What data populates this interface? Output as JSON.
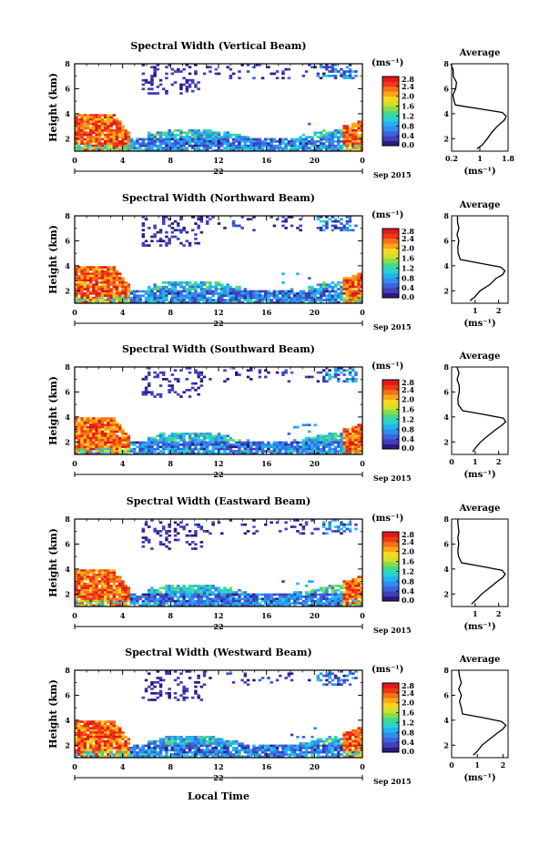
{
  "panels": [
    {
      "title": "Spectral Width (Vertical Beam)"
    },
    {
      "title": "Spectral Width (Northward Beam)"
    },
    {
      "title": "Spectral Width (Southward Beam)"
    },
    {
      "title": "Spectral Width (Eastward Beam)"
    },
    {
      "title": "Spectral Width (Westward Beam)"
    }
  ],
  "colorbar": {
    "unit_label": "(ms⁻¹)",
    "ticks": [
      "2.8",
      "2.4",
      "2.0",
      "1.6",
      "1.2",
      "0.8",
      "0.4",
      "0.0"
    ],
    "colors": [
      "#2b1b80",
      "#3f3fb8",
      "#3c64e0",
      "#2f8ef0",
      "#22b4f0",
      "#28d2d2",
      "#3ed890",
      "#8adc46",
      "#d2e028",
      "#f8d81c",
      "#f8a818",
      "#f87018",
      "#f03818",
      "#e01818"
    ]
  },
  "xaxis": {
    "ticks": [
      "0",
      "4",
      "8",
      "12",
      "16",
      "20",
      "0"
    ],
    "day_label": "22",
    "month_label": "Sep 2015",
    "label": "Local Time"
  },
  "yaxis": {
    "label": "Height (km)",
    "ticks": [
      "2",
      "4",
      "6",
      "8"
    ]
  },
  "average": {
    "title": "Average",
    "xlabel": "(ms⁻¹)",
    "yticks": [
      "2",
      "4",
      "6",
      "8"
    ]
  },
  "chart_data": [
    {
      "type": "heatmap",
      "title": "Spectral Width (Vertical Beam)",
      "x_range_hours": [
        0,
        24
      ],
      "y_range_km": [
        1,
        8
      ],
      "colorbar_range": [
        0.0,
        2.8
      ],
      "average_profile": {
        "xlim": [
          0.2,
          1.8
        ],
        "xticks": [
          "0.2",
          "1",
          "1.8"
        ],
        "height_km": [
          1.2,
          1.5,
          2,
          2.5,
          3,
          3.5,
          3.8,
          4.1,
          4.4,
          4.7,
          5,
          5.5,
          6,
          6.5,
          7,
          7.5,
          8
        ],
        "width_ms": [
          0.9,
          1.05,
          1.2,
          1.35,
          1.5,
          1.7,
          1.75,
          1.65,
          1.0,
          0.3,
          0.28,
          0.25,
          0.3,
          0.32,
          0.22,
          0.25,
          0.2
        ]
      }
    },
    {
      "type": "heatmap",
      "title": "Spectral Width (Northward Beam)",
      "x_range_hours": [
        0,
        24
      ],
      "y_range_km": [
        1,
        8
      ],
      "colorbar_range": [
        0.0,
        2.8
      ],
      "average_profile": {
        "xlim": [
          0,
          2.4
        ],
        "xticks": [
          "1",
          "2"
        ],
        "height_km": [
          1.2,
          1.5,
          2,
          2.5,
          3,
          3.3,
          3.6,
          3.9,
          4.2,
          4.5,
          5,
          5.5,
          6,
          6.5,
          7,
          7.5,
          8
        ],
        "width_ms": [
          0.8,
          0.95,
          1.2,
          1.6,
          1.9,
          2.15,
          2.25,
          2.1,
          1.2,
          0.4,
          0.3,
          0.28,
          0.32,
          0.25,
          0.3,
          0.28,
          0.25
        ]
      }
    },
    {
      "type": "heatmap",
      "title": "Spectral Width (Southward Beam)",
      "x_range_hours": [
        0,
        24
      ],
      "y_range_km": [
        1,
        8
      ],
      "colorbar_range": [
        0.0,
        2.8
      ],
      "average_profile": {
        "xlim": [
          0,
          2.4
        ],
        "xticks": [
          "0",
          "1",
          "2"
        ],
        "height_km": [
          1.2,
          1.5,
          2,
          2.5,
          3,
          3.3,
          3.6,
          3.9,
          4.2,
          4.5,
          5,
          5.5,
          6,
          6.5,
          7,
          7.5,
          8
        ],
        "width_ms": [
          0.9,
          1.0,
          1.25,
          1.55,
          1.9,
          2.1,
          2.3,
          2.2,
          1.4,
          0.45,
          0.3,
          0.25,
          0.35,
          0.3,
          0.25,
          0.3,
          0.25
        ]
      }
    },
    {
      "type": "heatmap",
      "title": "Spectral Width (Eastward Beam)",
      "x_range_hours": [
        0,
        24
      ],
      "y_range_km": [
        1,
        8
      ],
      "colorbar_range": [
        0.0,
        2.8
      ],
      "average_profile": {
        "xlim": [
          0,
          2.4
        ],
        "xticks": [
          "1",
          "2"
        ],
        "height_km": [
          1.2,
          1.5,
          2,
          2.5,
          3,
          3.3,
          3.6,
          3.9,
          4.2,
          4.5,
          5,
          5.5,
          6,
          6.5,
          7,
          7.5,
          8
        ],
        "width_ms": [
          0.85,
          1.0,
          1.3,
          1.6,
          1.95,
          2.15,
          2.3,
          2.15,
          1.3,
          0.4,
          0.3,
          0.28,
          0.3,
          0.25,
          0.3,
          0.28,
          0.25
        ]
      }
    },
    {
      "type": "heatmap",
      "title": "Spectral Width (Westward Beam)",
      "x_range_hours": [
        0,
        24
      ],
      "y_range_km": [
        1,
        8
      ],
      "colorbar_range": [
        0.0,
        2.8
      ],
      "average_profile": {
        "xlim": [
          0,
          2.2
        ],
        "xticks": [
          "0",
          "1",
          "2"
        ],
        "height_km": [
          1.2,
          1.5,
          2,
          2.5,
          3,
          3.3,
          3.6,
          3.9,
          4.2,
          4.5,
          5,
          5.5,
          6,
          6.5,
          7,
          7.5,
          8
        ],
        "width_ms": [
          0.85,
          1.0,
          1.2,
          1.5,
          1.8,
          2.0,
          2.1,
          1.95,
          1.2,
          0.45,
          0.35,
          0.3,
          0.4,
          0.3,
          0.35,
          0.3,
          0.25
        ]
      }
    }
  ]
}
